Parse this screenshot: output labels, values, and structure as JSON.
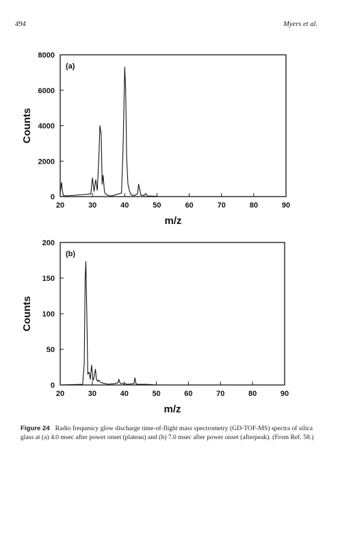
{
  "header": {
    "page_number": "494",
    "running_head": "Myers et al."
  },
  "chart_data": [
    {
      "type": "line",
      "panel_label": "(a)",
      "xlabel": "m/z",
      "ylabel": "Counts",
      "xlim": [
        20,
        90
      ],
      "ylim": [
        0,
        8000
      ],
      "xticks": [
        20,
        30,
        40,
        50,
        60,
        70,
        80,
        90
      ],
      "yticks": [
        0,
        2000,
        4000,
        6000,
        8000
      ],
      "grid": false,
      "series": [
        {
          "x": [
            20,
            20.4,
            20.7,
            21,
            22,
            29.5,
            30,
            30.5,
            31,
            31.5,
            32,
            32.3,
            32.7,
            33,
            33.3,
            33.7,
            34,
            34.5,
            35,
            36,
            39,
            39.5,
            40,
            40.3,
            40.6,
            41,
            41.5,
            42,
            43,
            44,
            44.3,
            45,
            46,
            46.5,
            47,
            50
          ],
          "y": [
            200,
            800,
            300,
            60,
            40,
            150,
            1050,
            300,
            950,
            350,
            2300,
            4000,
            3500,
            700,
            1200,
            300,
            150,
            100,
            50,
            40,
            200,
            2800,
            7300,
            6000,
            2200,
            700,
            300,
            100,
            60,
            150,
            700,
            80,
            60,
            180,
            40,
            20
          ]
        }
      ]
    },
    {
      "type": "line",
      "panel_label": "(b)",
      "xlabel": "m/z",
      "ylabel": "Counts",
      "xlim": [
        20,
        90
      ],
      "ylim": [
        0,
        200
      ],
      "xticks": [
        20,
        30,
        40,
        50,
        60,
        70,
        80,
        90
      ],
      "yticks": [
        0,
        50,
        100,
        150,
        200
      ],
      "grid": false,
      "series": [
        {
          "x": [
            20,
            27,
            27.5,
            27.8,
            28,
            28.3,
            28.6,
            29,
            29.4,
            29.8,
            30.2,
            30.5,
            31,
            31.3,
            31.7,
            32,
            32.5,
            33,
            34,
            35,
            37,
            38,
            38.3,
            38.6,
            39,
            40,
            41,
            43,
            43.3,
            43.6,
            44,
            45,
            47,
            50
          ],
          "y": [
            0,
            1,
            30,
            150,
            173,
            100,
            15,
            18,
            8,
            28,
            6,
            10,
            22,
            8,
            5,
            7,
            4,
            3,
            2,
            1,
            2,
            3,
            8,
            3,
            2,
            2,
            1,
            2,
            10,
            2,
            1,
            1,
            1,
            0
          ]
        }
      ]
    }
  ],
  "caption": {
    "label": "Figure 24",
    "text": "Radio frequency glow discharge time-of-flight mass spectrometry (GD-TOF-MS) spectra of silica glass at (a) 4.0 msec after power onset (plateau) and (b) 7.0 msec after power onset (afterpeak). (From Ref. 58.)"
  }
}
